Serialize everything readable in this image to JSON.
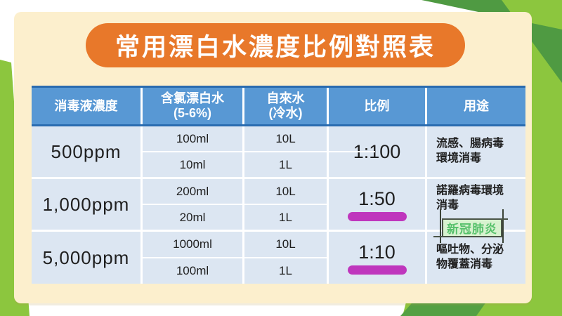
{
  "title": "常用漂白水濃度比例對照表",
  "colors": {
    "accent_orange": "#e8782a",
    "header_blue": "#5898d4",
    "header_border_blue": "#2a6cb0",
    "row_light_blue": "#dce6f2",
    "card_cream": "#fcefcd",
    "highlight_magenta": "#bf36bd",
    "annotation_green_text": "#56c16b",
    "annotation_green_bg": "#d7f2cf",
    "bg_green_bright": "#8cc63e",
    "bg_green_dark": "#4f9a42"
  },
  "table": {
    "columns": [
      {
        "label": "消毒液濃度"
      },
      {
        "label": "含氯漂白水\n(5-6%)"
      },
      {
        "label": "自來水\n(冷水)"
      },
      {
        "label": "比例"
      },
      {
        "label": "用途"
      }
    ],
    "rows": [
      {
        "concentration": "500ppm",
        "bleach": [
          "100ml",
          "10ml"
        ],
        "water": [
          "10L",
          "1L"
        ],
        "ratio": "1:100",
        "ratio_underlined": false,
        "usage": "流感、腸病毒\n環境消毒"
      },
      {
        "concentration": "1,000ppm",
        "bleach": [
          "200ml",
          "20ml"
        ],
        "water": [
          "10L",
          "1L"
        ],
        "ratio": "1:50",
        "ratio_underlined": true,
        "usage": "諾羅病毒環境\n消毒",
        "annotation": "新冠肺炎"
      },
      {
        "concentration": "5,000ppm",
        "bleach": [
          "1000ml",
          "100ml"
        ],
        "water": [
          "10L",
          "1L"
        ],
        "ratio": "1:10",
        "ratio_underlined": true,
        "usage": "嘔吐物、分泌\n物覆蓋消毒"
      }
    ]
  }
}
